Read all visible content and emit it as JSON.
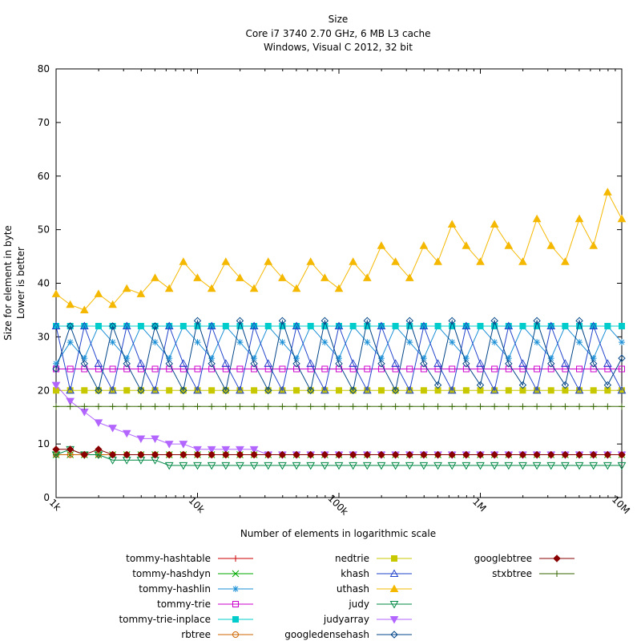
{
  "chart_data": {
    "type": "line",
    "title": [
      "Size",
      "Core i7 3740 2.70 GHz, 6 MB L3 cache",
      "Windows, Visual C 2012, 32 bit"
    ],
    "xlabel": "Number of elements in logarithmic scale",
    "ylabel": [
      "Size for element in byte",
      "Lower is better"
    ],
    "x_scale": "log",
    "xlim": [
      1000,
      10000000
    ],
    "ylim": [
      0,
      80
    ],
    "yticks": [
      0,
      10,
      20,
      30,
      40,
      50,
      60,
      70,
      80
    ],
    "xticks": [
      {
        "value": 1000,
        "label": "1k"
      },
      {
        "value": 10000,
        "label": "10k"
      },
      {
        "value": 100000,
        "label": "100k"
      },
      {
        "value": 1000000,
        "label": "1M"
      },
      {
        "value": 10000000,
        "label": "10M"
      }
    ],
    "grid": false,
    "legend_position": "bottom",
    "x": [
      1000,
      1259,
      1585,
      1995,
      2512,
      3162,
      3981,
      5012,
      6310,
      7943,
      10000,
      12589,
      15849,
      19953,
      25119,
      31623,
      39811,
      50119,
      63096,
      79433,
      100000,
      125893,
      158489,
      199526,
      251189,
      316228,
      398107,
      501187,
      630957,
      794328,
      1000000,
      1258925,
      1584893,
      1995262,
      2511886,
      3162278,
      3981072,
      5011872,
      6309573,
      7943282,
      10000000
    ],
    "series": [
      {
        "name": "tommy-hashtable",
        "color": "#cc0000",
        "marker": "plus",
        "values": [
          8,
          8,
          8,
          8,
          8,
          8,
          8,
          8,
          8,
          8,
          8,
          8,
          8,
          8,
          8,
          8,
          8,
          8,
          8,
          8,
          8,
          8,
          8,
          8,
          8,
          8,
          8,
          8,
          8,
          8,
          8,
          8,
          8,
          8,
          8,
          8,
          8,
          8,
          8,
          8,
          8
        ]
      },
      {
        "name": "tommy-hashdyn",
        "color": "#00aa00",
        "marker": "x",
        "values": [
          8,
          8,
          8,
          8,
          8,
          8,
          8,
          8,
          8,
          8,
          8,
          8,
          8,
          8,
          8,
          8,
          8,
          8,
          8,
          8,
          8,
          8,
          8,
          8,
          8,
          8,
          8,
          8,
          8,
          8,
          8,
          8,
          8,
          8,
          8,
          8,
          8,
          8,
          8,
          8,
          8
        ]
      },
      {
        "name": "tommy-hashlin",
        "color": "#1a8fd6",
        "marker": "star",
        "values": [
          25,
          29,
          26,
          32,
          29,
          26,
          32,
          29,
          26,
          32,
          29,
          26,
          32,
          29,
          26,
          32,
          29,
          26,
          32,
          29,
          26,
          32,
          29,
          26,
          32,
          29,
          26,
          32,
          29,
          26,
          32,
          29,
          26,
          32,
          29,
          26,
          32,
          29,
          26,
          32,
          29
        ]
      },
      {
        "name": "tommy-trie",
        "color": "#cc00cc",
        "marker": "square-open",
        "values": [
          24,
          24,
          24,
          24,
          24,
          24,
          24,
          24,
          24,
          24,
          24,
          24,
          24,
          24,
          24,
          24,
          24,
          24,
          24,
          24,
          24,
          24,
          24,
          24,
          24,
          24,
          24,
          24,
          24,
          24,
          24,
          24,
          24,
          24,
          24,
          24,
          24,
          24,
          24,
          24,
          24
        ]
      },
      {
        "name": "tommy-trie-inplace",
        "color": "#00cccc",
        "marker": "square",
        "values": [
          32,
          32,
          32,
          32,
          32,
          32,
          32,
          32,
          32,
          32,
          32,
          32,
          32,
          32,
          32,
          32,
          32,
          32,
          32,
          32,
          32,
          32,
          32,
          32,
          32,
          32,
          32,
          32,
          32,
          32,
          32,
          32,
          32,
          32,
          32,
          32,
          32,
          32,
          32,
          32,
          32
        ]
      },
      {
        "name": "rbtree",
        "color": "#cc6600",
        "marker": "circle-open",
        "values": [
          8,
          8,
          8,
          8,
          8,
          8,
          8,
          8,
          8,
          8,
          8,
          8,
          8,
          8,
          8,
          8,
          8,
          8,
          8,
          8,
          8,
          8,
          8,
          8,
          8,
          8,
          8,
          8,
          8,
          8,
          8,
          8,
          8,
          8,
          8,
          8,
          8,
          8,
          8,
          8,
          8
        ]
      },
      {
        "name": "nedtrie",
        "color": "#c8c800",
        "marker": "square",
        "values": [
          20,
          20,
          20,
          20,
          20,
          20,
          20,
          20,
          20,
          20,
          20,
          20,
          20,
          20,
          20,
          20,
          20,
          20,
          20,
          20,
          20,
          20,
          20,
          20,
          20,
          20,
          20,
          20,
          20,
          20,
          20,
          20,
          20,
          20,
          20,
          20,
          20,
          20,
          20,
          20,
          20
        ]
      },
      {
        "name": "khash",
        "color": "#2244cc",
        "marker": "triangle-open",
        "values": [
          32,
          20,
          32,
          25,
          20,
          32,
          25,
          20,
          32,
          25,
          20,
          32,
          25,
          20,
          32,
          25,
          20,
          32,
          25,
          20,
          32,
          25,
          20,
          32,
          25,
          20,
          32,
          25,
          20,
          32,
          25,
          20,
          32,
          25,
          20,
          32,
          25,
          20,
          32,
          25,
          20
        ]
      },
      {
        "name": "uthash",
        "color": "#f5b800",
        "marker": "triangle",
        "values": [
          38,
          36,
          35,
          38,
          36,
          39,
          38,
          41,
          39,
          44,
          41,
          39,
          44,
          41,
          39,
          44,
          41,
          39,
          44,
          41,
          39,
          44,
          41,
          47,
          44,
          41,
          47,
          44,
          51,
          47,
          44,
          51,
          47,
          44,
          52,
          47,
          44,
          52,
          47,
          57,
          52
        ]
      },
      {
        "name": "judy",
        "color": "#008844",
        "marker": "triangle-down-open",
        "values": [
          8,
          9,
          8,
          8,
          7,
          7,
          7,
          7,
          6,
          6,
          6,
          6,
          6,
          6,
          6,
          6,
          6,
          6,
          6,
          6,
          6,
          6,
          6,
          6,
          6,
          6,
          6,
          6,
          6,
          6,
          6,
          6,
          6,
          6,
          6,
          6,
          6,
          6,
          6,
          6,
          6
        ]
      },
      {
        "name": "judyarray",
        "color": "#b266ff",
        "marker": "triangle-down",
        "values": [
          21,
          18,
          16,
          14,
          13,
          12,
          11,
          11,
          10,
          10,
          9,
          9,
          9,
          9,
          9,
          8,
          8,
          8,
          8,
          8,
          8,
          8,
          8,
          8,
          8,
          8,
          8,
          8,
          8,
          8,
          8,
          8,
          8,
          8,
          8,
          8,
          8,
          8,
          8,
          8,
          8
        ]
      },
      {
        "name": "googledensehash",
        "color": "#004488",
        "marker": "diamond-open",
        "values": [
          24,
          32,
          25,
          20,
          32,
          25,
          20,
          32,
          25,
          20,
          33,
          25,
          20,
          33,
          25,
          20,
          33,
          25,
          20,
          33,
          25,
          20,
          33,
          25,
          20,
          33,
          25,
          21,
          33,
          25,
          21,
          33,
          25,
          21,
          33,
          25,
          21,
          33,
          25,
          21,
          26
        ]
      },
      {
        "name": "googlebtree",
        "color": "#880000",
        "marker": "diamond",
        "values": [
          9,
          9,
          8,
          9,
          8,
          8,
          8,
          8,
          8,
          8,
          8,
          8,
          8,
          8,
          8,
          8,
          8,
          8,
          8,
          8,
          8,
          8,
          8,
          8,
          8,
          8,
          8,
          8,
          8,
          8,
          8,
          8,
          8,
          8,
          8,
          8,
          8,
          8,
          8,
          8,
          8
        ]
      },
      {
        "name": "stxbtree",
        "color": "#336600",
        "marker": "plus",
        "values": [
          17,
          17,
          17,
          17,
          17,
          17,
          17,
          17,
          17,
          17,
          17,
          17,
          17,
          17,
          17,
          17,
          17,
          17,
          17,
          17,
          17,
          17,
          17,
          17,
          17,
          17,
          17,
          17,
          17,
          17,
          17,
          17,
          17,
          17,
          17,
          17,
          17,
          17,
          17,
          17,
          17
        ]
      }
    ]
  }
}
